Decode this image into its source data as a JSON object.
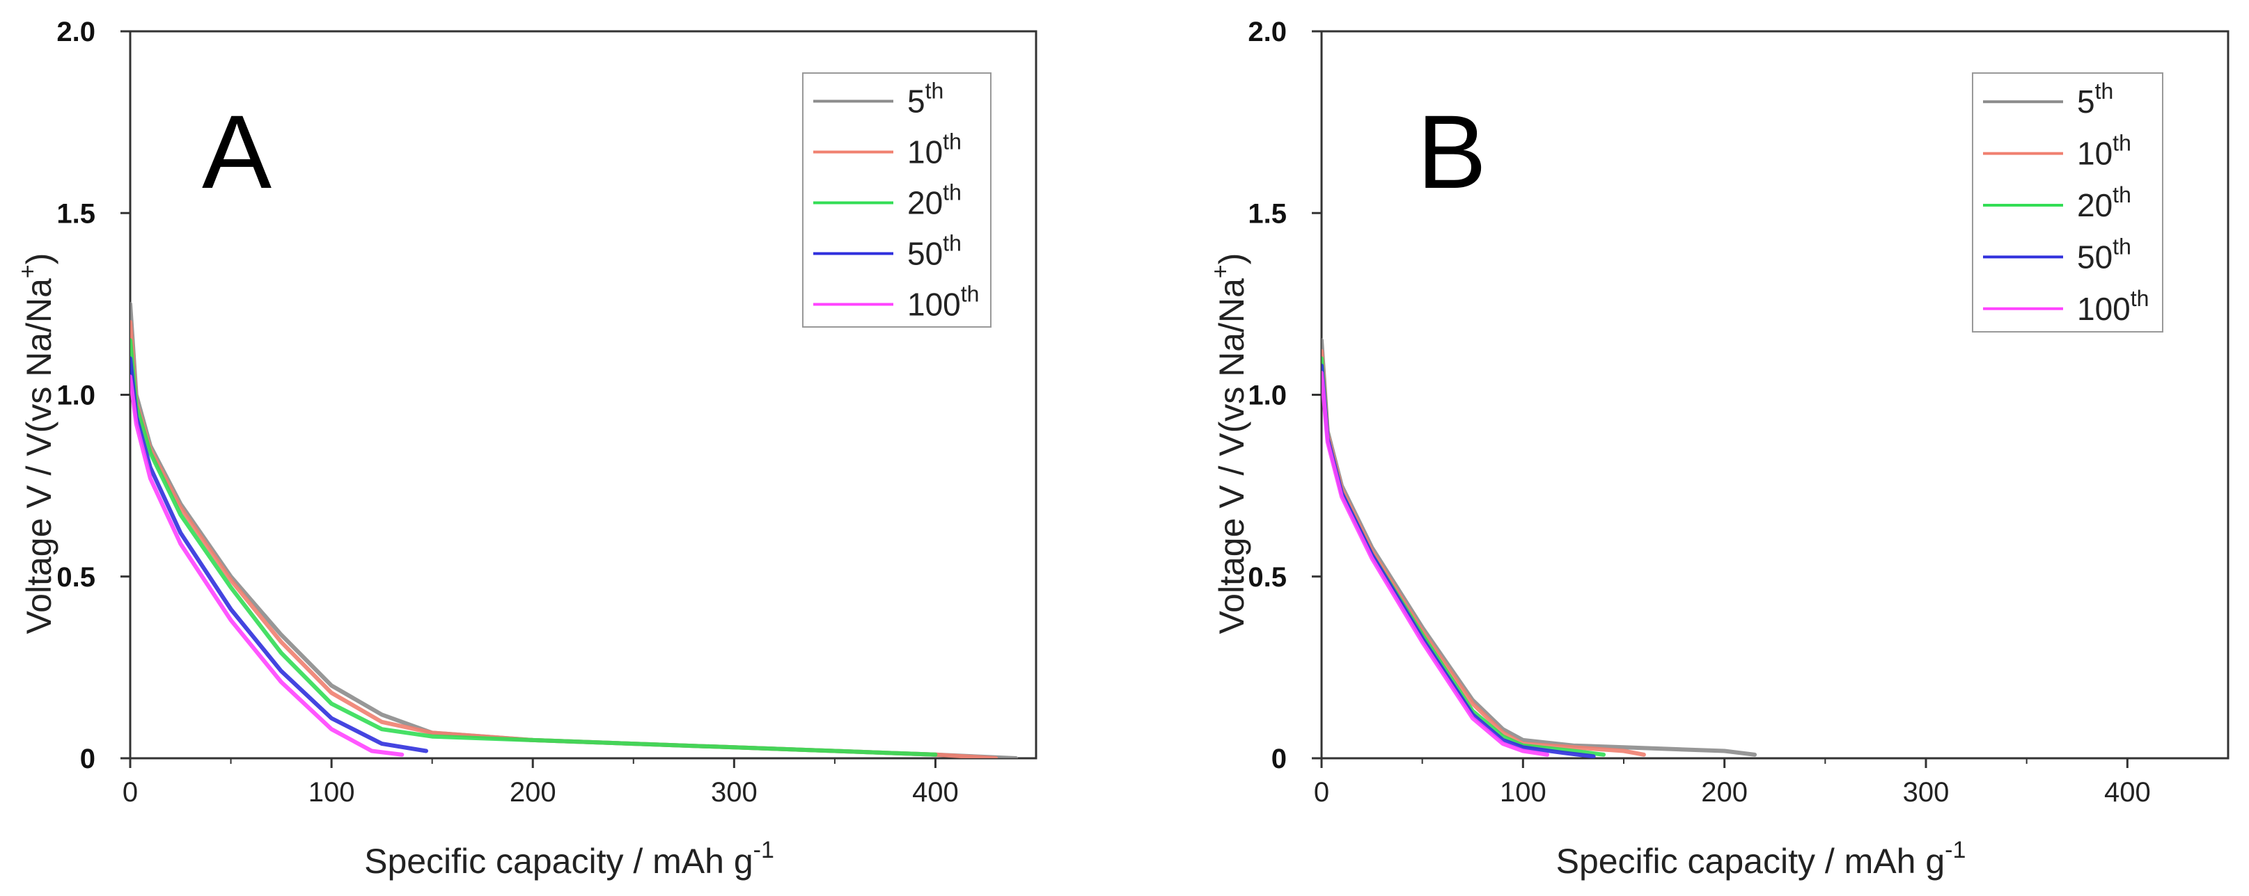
{
  "chart_data": [
    {
      "type": "line",
      "panel_label": "A",
      "xlabel": "Specific capacity / mAh g",
      "xlabel_sup": "-1",
      "ylabel": "Voltage V / V(vs Na/Na",
      "ylabel_sup": "+",
      "ylabel_end": ")",
      "xlim": [
        0,
        450
      ],
      "ylim": [
        0,
        2.0
      ],
      "xticks": [
        0,
        100,
        200,
        300,
        400
      ],
      "xtick_labels": [
        "0",
        "100",
        "200",
        "300",
        "400"
      ],
      "yticks": [
        0,
        0.5,
        1.0,
        1.5,
        2.0
      ],
      "ytick_labels": [
        "0",
        "0.5",
        "1.0",
        "1.5",
        "2.0"
      ],
      "legend_position": "top-right",
      "series": [
        {
          "name": "5",
          "sup": "th",
          "color": "#8c8c8c",
          "x": [
            0,
            3,
            10,
            25,
            50,
            75,
            100,
            125,
            150,
            200,
            250,
            300,
            350,
            400,
            440
          ],
          "y": [
            1.25,
            1.0,
            0.86,
            0.7,
            0.5,
            0.34,
            0.2,
            0.12,
            0.07,
            0.05,
            0.04,
            0.03,
            0.02,
            0.01,
            0.0
          ]
        },
        {
          "name": "10",
          "sup": "th",
          "color": "#f08070",
          "x": [
            0,
            3,
            10,
            25,
            50,
            75,
            100,
            125,
            150,
            200,
            250,
            300,
            350,
            400,
            430
          ],
          "y": [
            1.2,
            0.98,
            0.85,
            0.69,
            0.49,
            0.32,
            0.18,
            0.1,
            0.07,
            0.05,
            0.04,
            0.03,
            0.02,
            0.01,
            0.0
          ]
        },
        {
          "name": "20",
          "sup": "th",
          "color": "#33dd55",
          "x": [
            0,
            3,
            10,
            25,
            50,
            75,
            100,
            125,
            150,
            200,
            250,
            300,
            350,
            400
          ],
          "y": [
            1.15,
            0.97,
            0.84,
            0.67,
            0.47,
            0.29,
            0.15,
            0.08,
            0.06,
            0.05,
            0.04,
            0.03,
            0.02,
            0.01
          ]
        },
        {
          "name": "50",
          "sup": "th",
          "color": "#3030dd",
          "x": [
            0,
            3,
            10,
            25,
            50,
            75,
            100,
            125,
            147
          ],
          "y": [
            1.1,
            0.94,
            0.8,
            0.62,
            0.41,
            0.24,
            0.11,
            0.04,
            0.02
          ]
        },
        {
          "name": "100",
          "sup": "th",
          "color": "#ff44ff",
          "x": [
            0,
            3,
            10,
            25,
            50,
            75,
            100,
            120,
            135
          ],
          "y": [
            1.05,
            0.92,
            0.77,
            0.59,
            0.38,
            0.21,
            0.08,
            0.02,
            0.01
          ]
        }
      ]
    },
    {
      "type": "line",
      "panel_label": "B",
      "xlabel": "Specific capacity / mAh g",
      "xlabel_sup": "-1",
      "ylabel": "Voltage V / V(vs Na/Na",
      "ylabel_sup": "+",
      "ylabel_end": ")",
      "xlim": [
        0,
        450
      ],
      "ylim": [
        0,
        2.0
      ],
      "xticks": [
        0,
        100,
        200,
        300,
        400
      ],
      "xtick_labels": [
        "0",
        "100",
        "200",
        "300",
        "400"
      ],
      "yticks": [
        0,
        0.5,
        1.0,
        1.5,
        2.0
      ],
      "ytick_labels": [
        "0",
        "0.5",
        "1.0",
        "1.5",
        "2.0"
      ],
      "legend_position": "top-right",
      "series": [
        {
          "name": "5",
          "sup": "th",
          "color": "#8c8c8c",
          "x": [
            0,
            3,
            10,
            25,
            50,
            75,
            90,
            100,
            125,
            150,
            175,
            200,
            215
          ],
          "y": [
            1.15,
            0.9,
            0.75,
            0.58,
            0.36,
            0.16,
            0.08,
            0.05,
            0.035,
            0.03,
            0.025,
            0.02,
            0.01
          ]
        },
        {
          "name": "10",
          "sup": "th",
          "color": "#f08070",
          "x": [
            0,
            3,
            10,
            25,
            50,
            75,
            90,
            100,
            125,
            150,
            160
          ],
          "y": [
            1.12,
            0.89,
            0.74,
            0.57,
            0.35,
            0.15,
            0.07,
            0.04,
            0.03,
            0.02,
            0.01
          ]
        },
        {
          "name": "20",
          "sup": "th",
          "color": "#33dd55",
          "x": [
            0,
            3,
            10,
            25,
            50,
            75,
            90,
            100,
            125,
            140
          ],
          "y": [
            1.1,
            0.88,
            0.73,
            0.56,
            0.34,
            0.13,
            0.06,
            0.035,
            0.02,
            0.01
          ]
        },
        {
          "name": "50",
          "sup": "th",
          "color": "#3030dd",
          "x": [
            0,
            3,
            10,
            25,
            50,
            75,
            90,
            100,
            120,
            135
          ],
          "y": [
            1.08,
            0.88,
            0.73,
            0.56,
            0.33,
            0.12,
            0.05,
            0.03,
            0.015,
            0.005
          ]
        },
        {
          "name": "100",
          "sup": "th",
          "color": "#ff44ff",
          "x": [
            0,
            3,
            10,
            25,
            50,
            75,
            90,
            100,
            112
          ],
          "y": [
            1.06,
            0.87,
            0.72,
            0.55,
            0.32,
            0.11,
            0.04,
            0.02,
            0.01
          ]
        }
      ]
    }
  ]
}
